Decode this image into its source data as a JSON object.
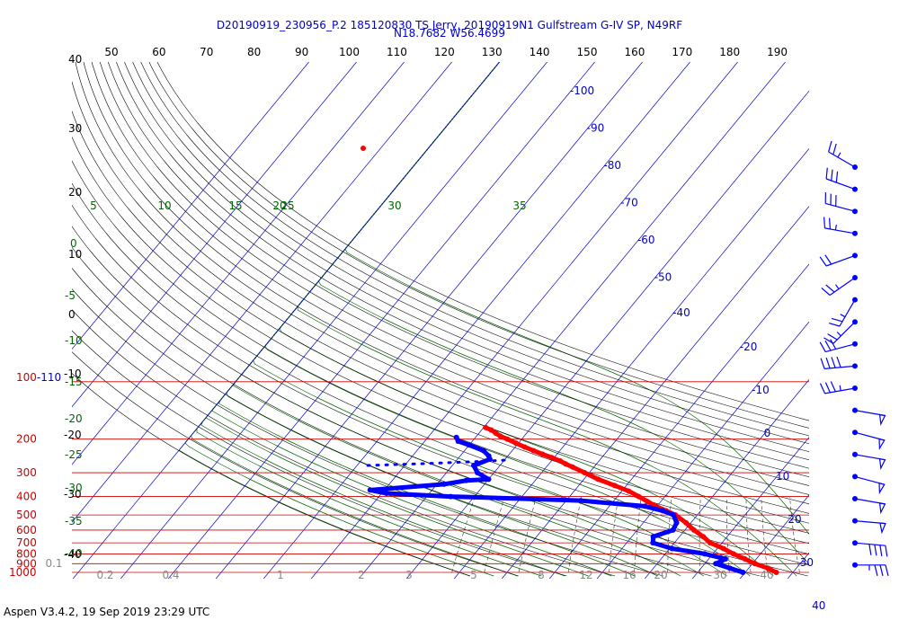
{
  "header": {
    "line1": "D20190919_230956_P.2 185120830 TS Jerry, 20190919N1 Gulfstream G-IV SP, N49RF",
    "line2": "N18.7682 W56.4699"
  },
  "footer": "Aspen V3.4.2, 19 Sep 2019  23:29 UTC",
  "colors": {
    "temperature": "#ff0000",
    "dewpoint": "#0000ff",
    "isobar": "#cc0000",
    "isotherm": "#0000cc",
    "dry_adiabat": "#000000",
    "moist_adiabat": "#006600",
    "mixing_ratio": "#333333"
  },
  "chart_data": {
    "type": "scatter",
    "title": "D20190919_230956_P.2 185120830 TS Jerry, 20190919N1 Gulfstream G-IV SP, N49RF",
    "subtitle": "N18.7682 W56.4699",
    "diagram": "skew-T log-P",
    "y_axis_scale": "log",
    "pressure_levels_hPa": [
      100,
      200,
      300,
      400,
      500,
      600,
      700,
      800,
      900,
      1000
    ],
    "pressure_labels": [
      "100-110",
      "200",
      "300",
      "400",
      "500",
      "600",
      "700",
      "800",
      "900",
      "1000"
    ],
    "top_theta_labels": [
      "50",
      "60",
      "70",
      "80",
      "90",
      "100",
      "110",
      "120",
      "130",
      "140",
      "150",
      "160",
      "170",
      "180",
      "190"
    ],
    "isotherm_labels": [
      "-100",
      "-90",
      "-80",
      "-70",
      "-60",
      "-50",
      "-40",
      "-20",
      "-10",
      "0",
      "10",
      "20",
      "30",
      "40"
    ],
    "isotherm_label_values": [
      -100,
      -90,
      -80,
      -70,
      -60,
      -50,
      -40,
      -20,
      -10,
      0,
      10,
      20,
      30,
      40
    ],
    "theta_e_labels": [
      "5",
      "10",
      "15",
      "20",
      "25",
      "30",
      "35"
    ],
    "theta_e_values": [
      5,
      10,
      15,
      20,
      25,
      30,
      35
    ],
    "left_dry_labels": [
      "40",
      "30",
      "20",
      "10",
      "0",
      "-10",
      "-20",
      "-30",
      "-40"
    ],
    "left_dry_values": [
      40,
      30,
      20,
      10,
      0,
      -10,
      -20,
      -30,
      -40
    ],
    "left_moist_labels": [
      "0",
      "-5",
      "-10",
      "-15",
      "-20",
      "-25",
      "-30",
      "-35",
      "-40"
    ],
    "left_moist_values": [
      0,
      -5,
      -10,
      -15,
      -20,
      -25,
      -30,
      -35,
      -40
    ],
    "mixing_ratio_labels": [
      "0.1",
      "0.2",
      "0.4",
      "1",
      "2",
      "3",
      "5",
      "8",
      "12",
      "16",
      "20",
      "30",
      "40"
    ],
    "mixing_ratio_values": [
      0.1,
      0.2,
      0.4,
      1,
      2,
      3,
      5,
      8,
      12,
      16,
      20,
      30,
      40
    ],
    "series": [
      {
        "name": "Temperature",
        "data": [
          [
            174,
            -59.6
          ],
          [
            179,
            -58.0
          ],
          [
            186,
            -56.5
          ],
          [
            193,
            -55.0
          ],
          [
            200,
            -53.0
          ],
          [
            210,
            -50.5
          ],
          [
            220,
            -48.0
          ],
          [
            230,
            -45.5
          ],
          [
            240,
            -43.0
          ],
          [
            250,
            -40.5
          ],
          [
            260,
            -38.2
          ],
          [
            270,
            -36.5
          ],
          [
            280,
            -34.5
          ],
          [
            300,
            -31.0
          ],
          [
            325,
            -27.0
          ],
          [
            350,
            -22.5
          ],
          [
            375,
            -18.5
          ],
          [
            400,
            -15.5
          ],
          [
            425,
            -12.8
          ],
          [
            450,
            -10.2
          ],
          [
            475,
            -7.3
          ],
          [
            500,
            -4.6
          ],
          [
            550,
            -1.0
          ],
          [
            600,
            1.9
          ],
          [
            650,
            5.0
          ],
          [
            700,
            7.5
          ],
          [
            750,
            11.3
          ],
          [
            800,
            14.3
          ],
          [
            850,
            17.6
          ],
          [
            900,
            20.5
          ],
          [
            950,
            24.0
          ],
          [
            1000,
            26.5
          ]
        ]
      },
      {
        "name": "Dewpoint",
        "data": [
          [
            196,
            -64.0
          ],
          [
            205,
            -63.0
          ],
          [
            215,
            -60.0
          ],
          [
            230,
            -56.0
          ],
          [
            245,
            -54.0
          ],
          [
            255,
            -53.2
          ],
          [
            275,
            -55.5
          ],
          [
            300,
            -53.5
          ],
          [
            325,
            -50.0
          ],
          [
            330,
            -54.5
          ],
          [
            345,
            -58.5
          ],
          [
            370,
            -73.0
          ],
          [
            385,
            -69.0
          ],
          [
            400,
            -55.0
          ],
          [
            420,
            -27.0
          ],
          [
            450,
            -12.5
          ],
          [
            475,
            -8.0
          ],
          [
            500,
            -5.0
          ],
          [
            550,
            -3.0
          ],
          [
            600,
            -2.5
          ],
          [
            650,
            -5.5
          ],
          [
            700,
            -4.5
          ],
          [
            750,
            0.5
          ],
          [
            800,
            8.3
          ],
          [
            850,
            13.5
          ],
          [
            875,
            13.0
          ],
          [
            900,
            12.3
          ],
          [
            950,
            16.0
          ],
          [
            1000,
            19.5
          ]
        ]
      },
      {
        "name": "Dewpoint upper branch",
        "data": [
          [
            258,
            -50.0
          ],
          [
            262,
            -55.0
          ],
          [
            265,
            -60.0
          ],
          [
            268,
            -65.0
          ],
          [
            272,
            -72.0
          ],
          [
            275,
            -78.0
          ]
        ]
      }
    ],
    "wind_barbs": [
      {
        "p": 170,
        "direction_deg": 300,
        "speed_kt": 25
      },
      {
        "p": 200,
        "direction_deg": 290,
        "speed_kt": 30
      },
      {
        "p": 230,
        "direction_deg": 285,
        "speed_kt": 30
      },
      {
        "p": 260,
        "direction_deg": 280,
        "speed_kt": 25
      },
      {
        "p": 290,
        "direction_deg": 250,
        "speed_kt": 20
      },
      {
        "p": 320,
        "direction_deg": 235,
        "speed_kt": 25
      },
      {
        "p": 350,
        "direction_deg": 210,
        "speed_kt": 25
      },
      {
        "p": 380,
        "direction_deg": 225,
        "speed_kt": 25
      },
      {
        "p": 420,
        "direction_deg": 255,
        "speed_kt": 30
      },
      {
        "p": 460,
        "direction_deg": 265,
        "speed_kt": 40
      },
      {
        "p": 500,
        "direction_deg": 260,
        "speed_kt": 35
      },
      {
        "p": 550,
        "direction_deg": 100,
        "speed_kt": 50
      },
      {
        "p": 600,
        "direction_deg": 105,
        "speed_kt": 50
      },
      {
        "p": 650,
        "direction_deg": 100,
        "speed_kt": 50
      },
      {
        "p": 700,
        "direction_deg": 105,
        "speed_kt": 50
      },
      {
        "p": 750,
        "direction_deg": 100,
        "speed_kt": 50
      },
      {
        "p": 800,
        "direction_deg": 95,
        "speed_kt": 50
      },
      {
        "p": 850,
        "direction_deg": 95,
        "speed_kt": 40
      },
      {
        "p": 900,
        "direction_deg": 90,
        "speed_kt": 35
      }
    ]
  }
}
